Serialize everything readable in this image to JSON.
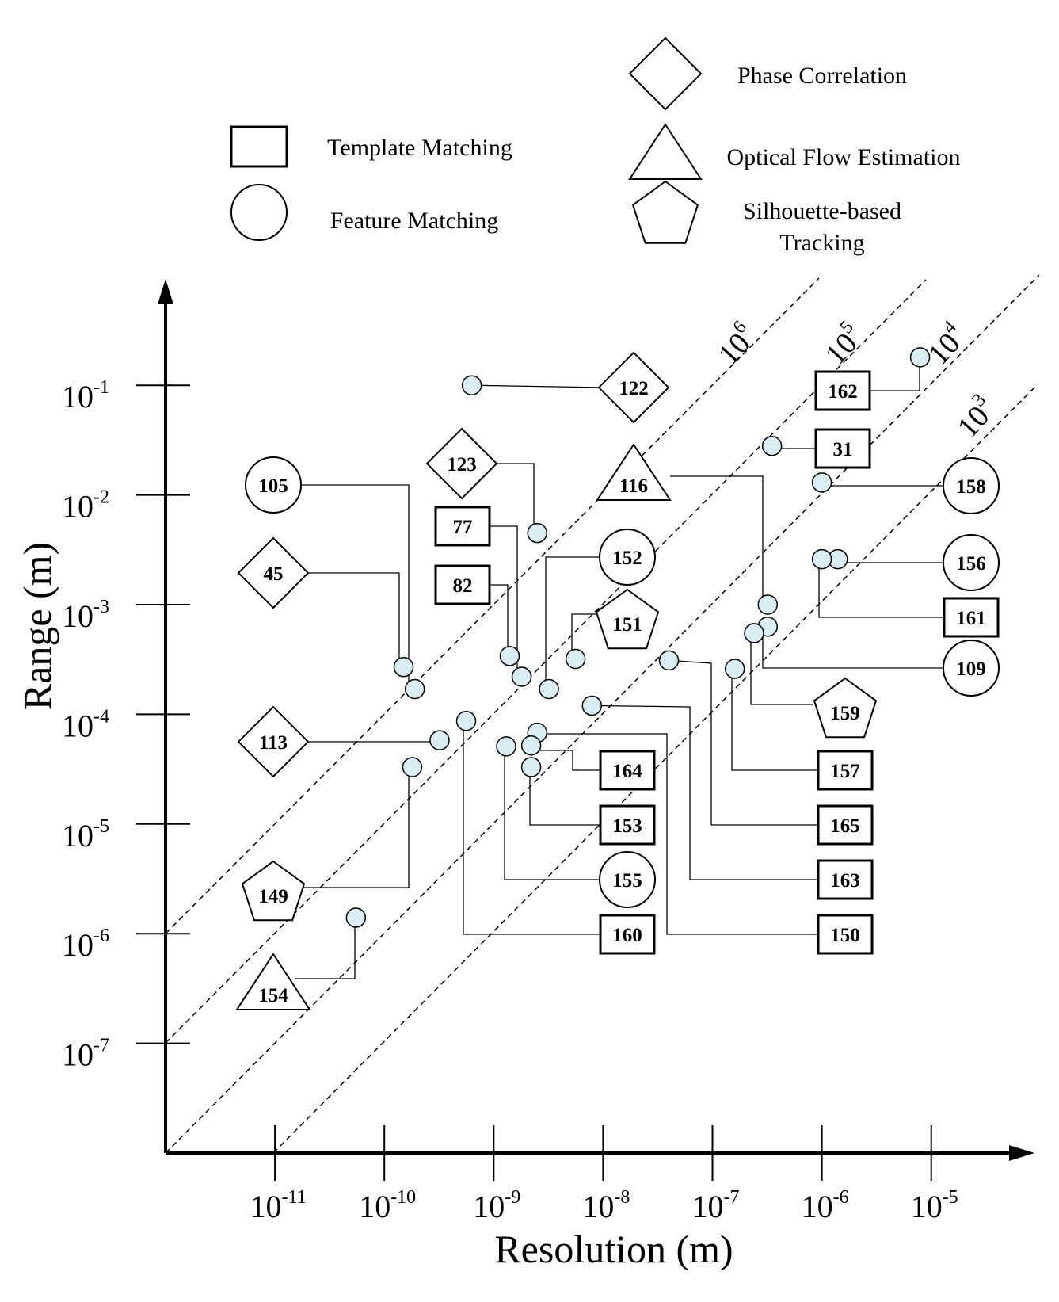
{
  "chart_data": {
    "type": "scatter",
    "xlabel": "Resolution (m)",
    "ylabel": "Range (m)",
    "x_scale": "log",
    "y_scale": "log",
    "xlim": [
      1e-12,
      0.0001
    ],
    "ylim": [
      1e-08,
      1
    ],
    "x_ticks": [
      {
        "base": "10",
        "exp": "-11"
      },
      {
        "base": "10",
        "exp": "-10"
      },
      {
        "base": "10",
        "exp": "-9"
      },
      {
        "base": "10",
        "exp": "-8"
      },
      {
        "base": "10",
        "exp": "-7"
      },
      {
        "base": "10",
        "exp": "-6"
      },
      {
        "base": "10",
        "exp": "-5"
      }
    ],
    "y_ticks": [
      {
        "base": "10",
        "exp": "-1"
      },
      {
        "base": "10",
        "exp": "-2"
      },
      {
        "base": "10",
        "exp": "-3"
      },
      {
        "base": "10",
        "exp": "-4"
      },
      {
        "base": "10",
        "exp": "-5"
      },
      {
        "base": "10",
        "exp": "-6"
      },
      {
        "base": "10",
        "exp": "-7"
      }
    ],
    "ratio_lines": [
      {
        "base": "10",
        "exp": "6",
        "ratio": 1000000
      },
      {
        "base": "10",
        "exp": "5",
        "ratio": 100000
      },
      {
        "base": "10",
        "exp": "4",
        "ratio": 10000
      },
      {
        "base": "10",
        "exp": "3",
        "ratio": 1000
      }
    ],
    "legend": [
      {
        "shape": "square",
        "label": "Template Matching"
      },
      {
        "shape": "circle",
        "label": "Feature Matching"
      },
      {
        "shape": "diamond",
        "label": "Phase Correlation"
      },
      {
        "shape": "triangle",
        "label": "Optical Flow Estimation"
      },
      {
        "shape": "pentagon",
        "label": "Silhouette-based",
        "label2": "Tracking"
      }
    ],
    "points": [
      {
        "ref": "122",
        "method": "diamond",
        "x": 6.3e-10,
        "y": 0.1
      },
      {
        "ref": "123",
        "method": "diamond",
        "x": 2.5e-09,
        "y": 0.0045
      },
      {
        "ref": "77",
        "method": "square",
        "x": 1.8e-09,
        "y": 0.00022
      },
      {
        "ref": "82",
        "method": "square",
        "x": 1.4e-09,
        "y": 0.00034
      },
      {
        "ref": "105",
        "method": "circle",
        "x": 1.9e-10,
        "y": 0.00017
      },
      {
        "ref": "45",
        "method": "diamond",
        "x": 1.5e-10,
        "y": 0.00027
      },
      {
        "ref": "113",
        "method": "diamond",
        "x": 3.2e-10,
        "y": 5.8e-05
      },
      {
        "ref": "149",
        "method": "pentagon",
        "x": 1.8e-10,
        "y": 3.3e-05
      },
      {
        "ref": "154",
        "method": "triangle",
        "x": 5.5e-11,
        "y": 1.4e-06
      },
      {
        "ref": "152",
        "method": "circle",
        "x": 3.2e-09,
        "y": 0.00017
      },
      {
        "ref": "151",
        "method": "pentagon",
        "x": 5.6e-09,
        "y": 0.00032
      },
      {
        "ref": "116",
        "method": "triangle",
        "x": 3.2e-07,
        "y": 0.001
      },
      {
        "ref": "162",
        "method": "square",
        "x": 7.9e-06,
        "y": 0.18
      },
      {
        "ref": "31",
        "method": "square",
        "x": 3.5e-07,
        "y": 0.028
      },
      {
        "ref": "158",
        "method": "circle",
        "x": 1e-06,
        "y": 0.013
      },
      {
        "ref": "156",
        "method": "circle",
        "x": 1.4e-06,
        "y": 0.0026
      },
      {
        "ref": "161",
        "method": "square",
        "x": 1e-06,
        "y": 0.0026
      },
      {
        "ref": "109",
        "method": "circle",
        "x": 3.2e-07,
        "y": 0.00063
      },
      {
        "ref": "159",
        "method": "pentagon",
        "x": 2.4e-07,
        "y": 0.00055
      },
      {
        "ref": "157",
        "method": "square",
        "x": 1.6e-07,
        "y": 0.00026
      },
      {
        "ref": "165",
        "method": "square",
        "x": 4e-08,
        "y": 0.00031
      },
      {
        "ref": "163",
        "method": "square",
        "x": 7.9e-09,
        "y": 0.00012
      },
      {
        "ref": "150",
        "method": "square",
        "x": 2.5e-09,
        "y": 6.8e-05
      },
      {
        "ref": "164",
        "method": "square",
        "x": 2.2e-09,
        "y": 5.2e-05
      },
      {
        "ref": "153",
        "method": "square",
        "x": 2.2e-09,
        "y": 3.3e-05
      },
      {
        "ref": "155",
        "method": "circle",
        "x": 1.3e-09,
        "y": 5.1e-05
      },
      {
        "ref": "160",
        "method": "square",
        "x": 5.6e-10,
        "y": 8.7e-05
      }
    ]
  }
}
